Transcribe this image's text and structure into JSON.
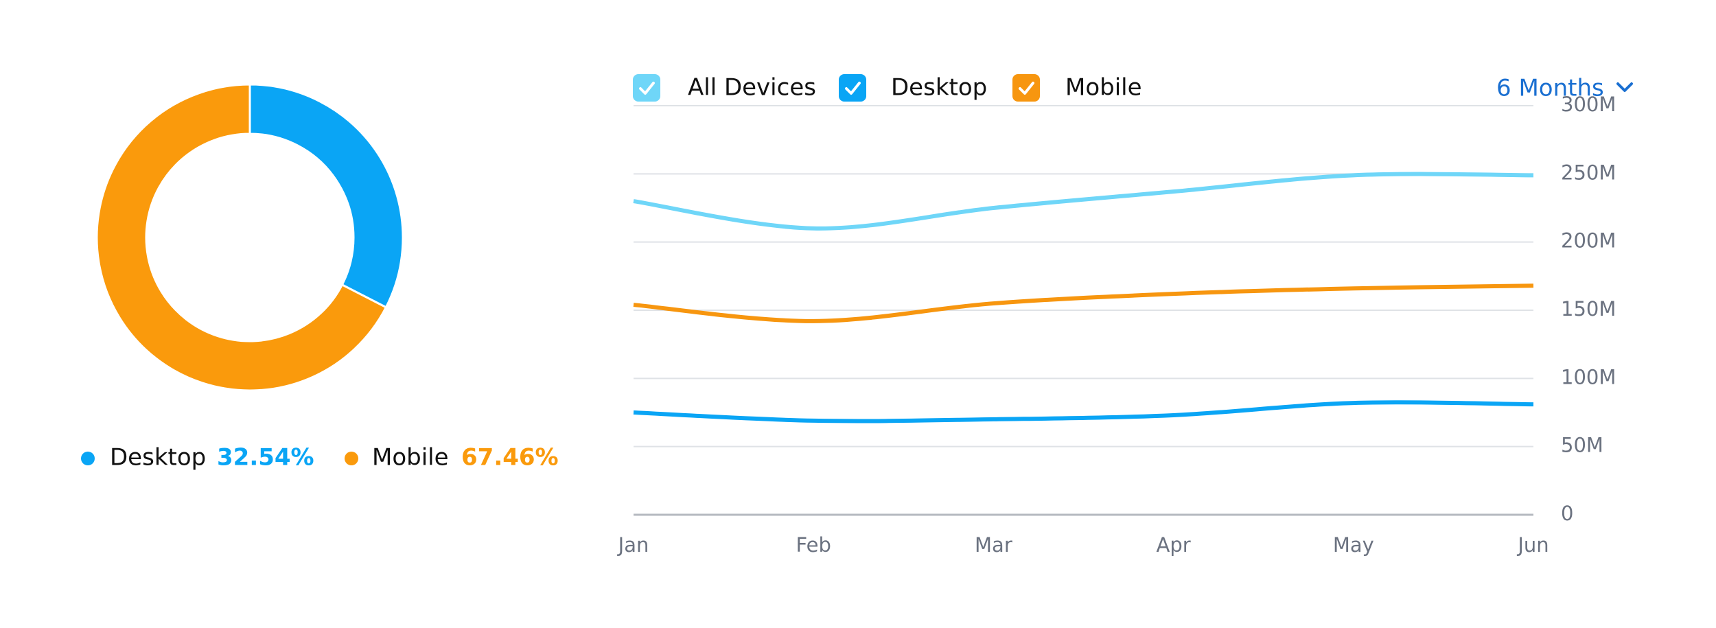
{
  "chart_data": [
    {
      "type": "pie",
      "donut": true,
      "categories": [
        "Desktop",
        "Mobile"
      ],
      "values": [
        32.54,
        67.46
      ],
      "value_labels": [
        "32.54%",
        "67.46%"
      ],
      "colors": [
        "#0aa5f5",
        "#fa9a0c"
      ]
    },
    {
      "type": "line",
      "categories": [
        "Jan",
        "Feb",
        "Mar",
        "Apr",
        "May",
        "Jun"
      ],
      "series": [
        {
          "name": "All Devices",
          "color": "#6fd6f8",
          "values": [
            230000000,
            210000000,
            225000000,
            237000000,
            249000000,
            249000000
          ]
        },
        {
          "name": "Desktop",
          "color": "#0aa5f5",
          "values": [
            75000000,
            69000000,
            70000000,
            73000000,
            82000000,
            81000000
          ]
        },
        {
          "name": "Mobile",
          "color": "#f7960f",
          "values": [
            154000000,
            142000000,
            155000000,
            162000000,
            166000000,
            168000000
          ]
        }
      ],
      "ylim": [
        0,
        300000000
      ],
      "yticks": [
        {
          "value": 0,
          "label": "0"
        },
        {
          "value": 50000000,
          "label": "50M"
        },
        {
          "value": 100000000,
          "label": "100M"
        },
        {
          "value": 150000000,
          "label": "150M"
        },
        {
          "value": 200000000,
          "label": "200M"
        },
        {
          "value": 250000000,
          "label": "250M"
        },
        {
          "value": 300000000,
          "label": "300M"
        }
      ],
      "grid": true
    }
  ],
  "controls": {
    "period": "6 Months"
  }
}
